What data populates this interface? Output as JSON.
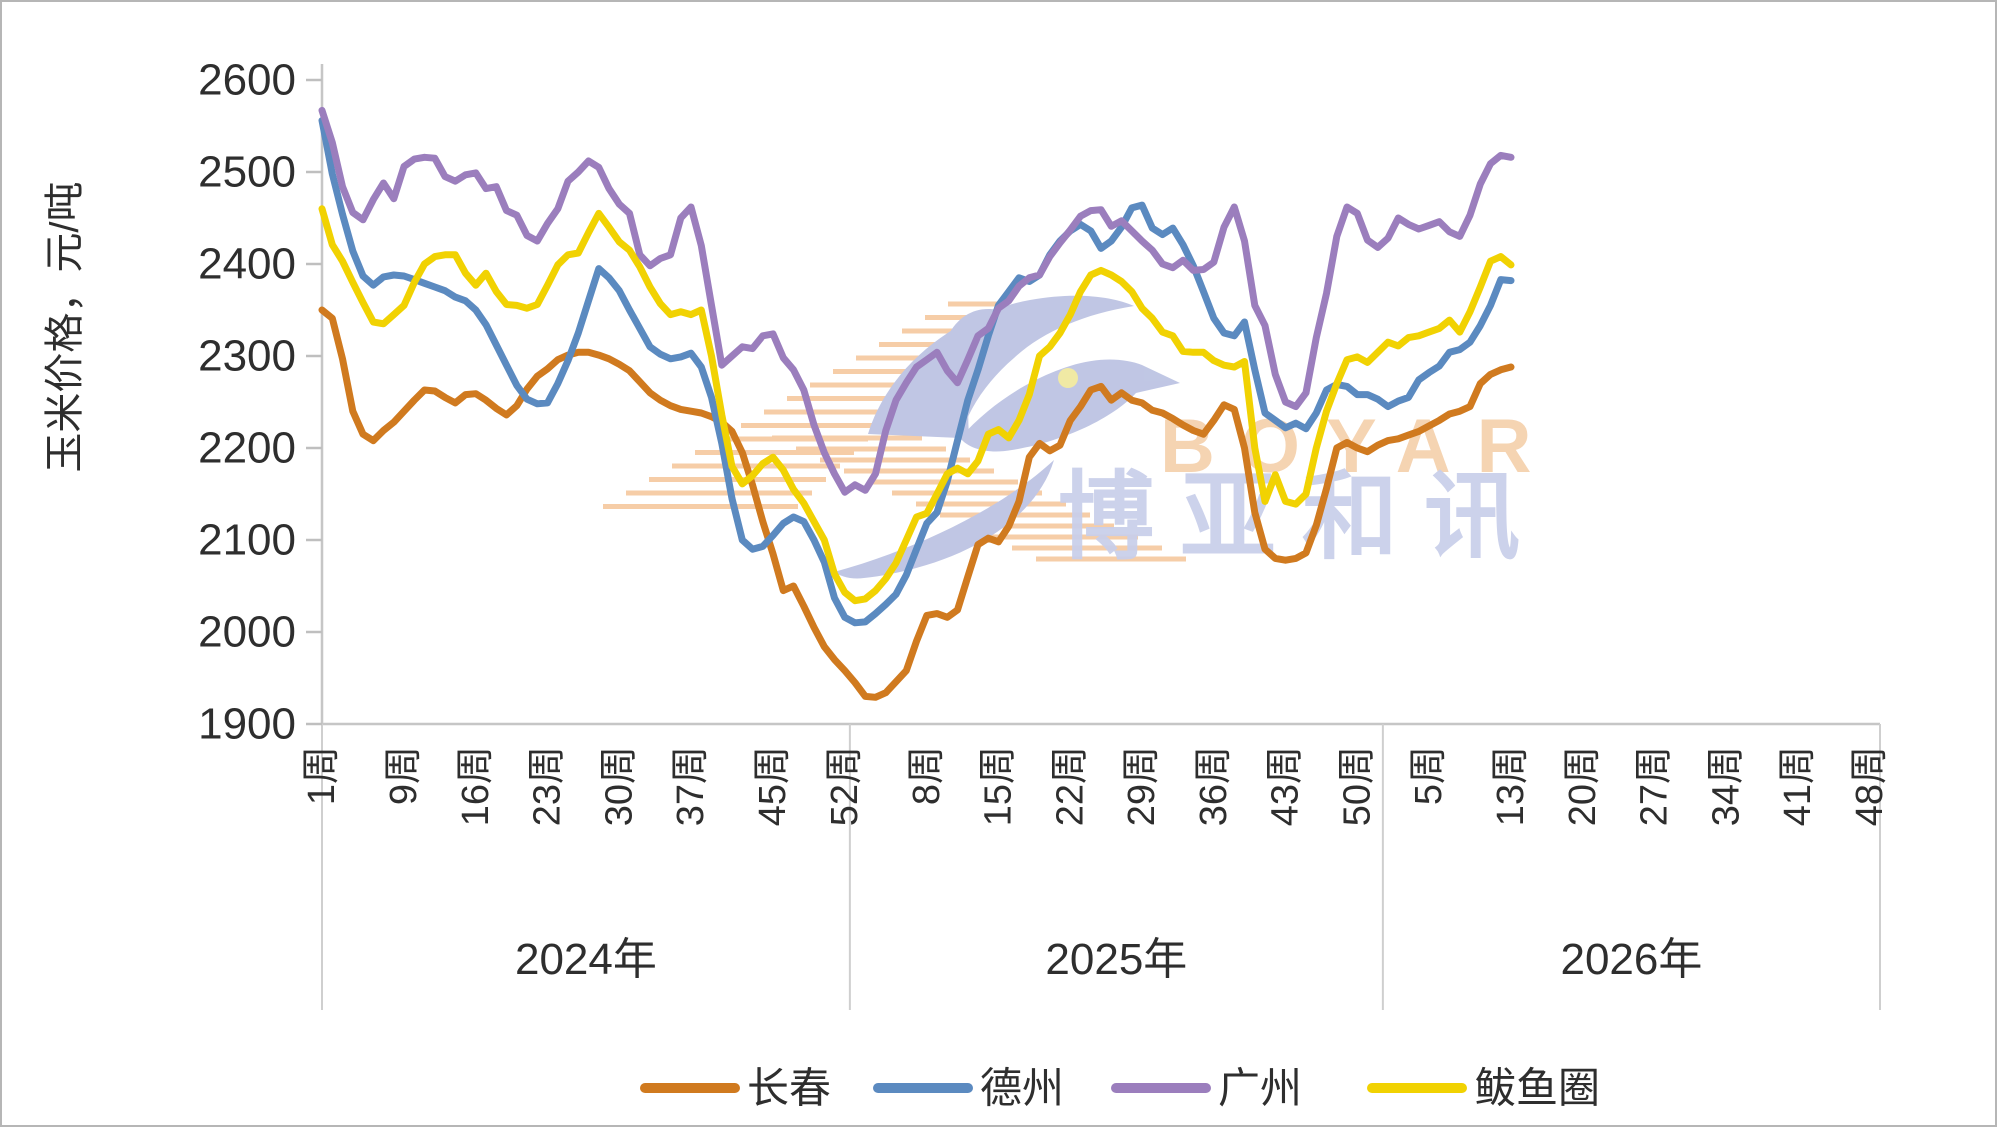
{
  "y_axis_title": "玉米价格，元/吨",
  "watermark": {
    "latin": "BOYAR",
    "cjk": "博亚和讯"
  },
  "chart_data": {
    "type": "line",
    "title": "",
    "ylabel": "玉米价格，元/吨",
    "ylim": [
      1900,
      2600
    ],
    "yticks": [
      2600,
      2500,
      2400,
      2300,
      2200,
      2100,
      2000,
      1900
    ],
    "grid": "off",
    "legend_position": "bottom",
    "week_suffix": "周",
    "years": [
      {
        "label": "2024年",
        "weeks": 52,
        "tick_weeks": [
          1,
          9,
          16,
          23,
          30,
          37,
          45,
          52
        ]
      },
      {
        "label": "2025年",
        "weeks": 52,
        "tick_weeks": [
          8,
          15,
          22,
          29,
          36,
          43,
          50
        ]
      },
      {
        "label": "2026年",
        "weeks": 52,
        "tick_weeks": [
          5,
          13,
          20,
          27,
          34,
          41,
          48
        ]
      }
    ],
    "series": [
      {
        "id": "changchun",
        "name": "长春",
        "color": "#D07A1F",
        "values": [
          2350,
          2341,
          2297,
          2240,
          2215,
          2208,
          2219,
          2228,
          2240,
          2252,
          2263,
          2262,
          2255,
          2249,
          2258,
          2259,
          2252,
          2243,
          2236,
          2246,
          2264,
          2278,
          2286,
          2296,
          2301,
          2304,
          2304,
          2301,
          2297,
          2291,
          2284,
          2272,
          2260,
          2252,
          2246,
          2242,
          2240,
          2238,
          2234,
          2228,
          2218,
          2195,
          2160,
          2120,
          2085,
          2045,
          2050,
          2028,
          2005,
          1984,
          1970,
          1958,
          1945,
          1930,
          1929,
          1934,
          1946,
          1958,
          1990,
          2018,
          2020,
          2016,
          2024,
          2060,
          2095,
          2102,
          2098,
          2115,
          2142,
          2190,
          2205,
          2197,
          2203,
          2230,
          2245,
          2263,
          2267,
          2252,
          2260,
          2252,
          2249,
          2241,
          2238,
          2232,
          2225,
          2219,
          2215,
          2230,
          2247,
          2242,
          2200,
          2130,
          2090,
          2080,
          2078,
          2080,
          2086,
          2116,
          2156,
          2200,
          2206,
          2200,
          2196,
          2203,
          2208,
          2210,
          2214,
          2218,
          2224,
          2230,
          2237,
          2240,
          2245,
          2270,
          2280,
          2285,
          2288
        ]
      },
      {
        "id": "dezhou",
        "name": "德州",
        "color": "#5B8AC0",
        "values": [
          2556,
          2498,
          2454,
          2414,
          2387,
          2377,
          2386,
          2388,
          2387,
          2383,
          2379,
          2375,
          2371,
          2364,
          2360,
          2350,
          2334,
          2312,
          2290,
          2268,
          2253,
          2248,
          2249,
          2270,
          2295,
          2325,
          2360,
          2395,
          2385,
          2371,
          2350,
          2330,
          2310,
          2302,
          2297,
          2299,
          2303,
          2288,
          2255,
          2205,
          2145,
          2100,
          2090,
          2093,
          2105,
          2118,
          2125,
          2120,
          2100,
          2076,
          2037,
          2016,
          2010,
          2011,
          2020,
          2030,
          2041,
          2062,
          2090,
          2118,
          2130,
          2164,
          2208,
          2252,
          2285,
          2322,
          2355,
          2370,
          2385,
          2381,
          2388,
          2410,
          2425,
          2436,
          2443,
          2436,
          2417,
          2425,
          2440,
          2461,
          2464,
          2439,
          2432,
          2439,
          2421,
          2398,
          2370,
          2341,
          2325,
          2322,
          2337,
          2285,
          2238,
          2230,
          2222,
          2227,
          2221,
          2238,
          2263,
          2269,
          2267,
          2258,
          2258,
          2253,
          2245,
          2251,
          2255,
          2274,
          2282,
          2289,
          2304,
          2307,
          2315,
          2333,
          2355,
          2383,
          2382
        ]
      },
      {
        "id": "guangzhou",
        "name": "广州",
        "color": "#9B7EBD",
        "values": [
          2567,
          2532,
          2484,
          2456,
          2448,
          2470,
          2488,
          2471,
          2506,
          2514,
          2516,
          2515,
          2495,
          2490,
          2497,
          2499,
          2482,
          2484,
          2458,
          2453,
          2431,
          2425,
          2444,
          2460,
          2490,
          2500,
          2512,
          2505,
          2482,
          2465,
          2455,
          2410,
          2398,
          2406,
          2410,
          2450,
          2462,
          2420,
          2355,
          2290,
          2300,
          2310,
          2308,
          2322,
          2324,
          2298,
          2285,
          2263,
          2225,
          2195,
          2172,
          2152,
          2160,
          2154,
          2172,
          2219,
          2252,
          2271,
          2288,
          2296,
          2304,
          2284,
          2271,
          2296,
          2322,
          2330,
          2352,
          2360,
          2376,
          2385,
          2388,
          2408,
          2423,
          2437,
          2452,
          2458,
          2459,
          2441,
          2447,
          2436,
          2425,
          2415,
          2400,
          2396,
          2404,
          2393,
          2394,
          2402,
          2440,
          2462,
          2425,
          2355,
          2333,
          2280,
          2250,
          2245,
          2260,
          2320,
          2368,
          2430,
          2462,
          2455,
          2426,
          2418,
          2428,
          2450,
          2443,
          2438,
          2442,
          2446,
          2435,
          2430,
          2453,
          2487,
          2509,
          2518,
          2516
        ]
      },
      {
        "id": "bayuquan",
        "name": "鲅鱼圈",
        "color": "#F1D202",
        "values": [
          2460,
          2421,
          2403,
          2380,
          2358,
          2337,
          2335,
          2345,
          2355,
          2380,
          2400,
          2408,
          2410,
          2410,
          2390,
          2377,
          2390,
          2370,
          2356,
          2355,
          2352,
          2356,
          2377,
          2399,
          2410,
          2412,
          2434,
          2455,
          2440,
          2424,
          2415,
          2397,
          2375,
          2357,
          2345,
          2348,
          2345,
          2350,
          2300,
          2236,
          2180,
          2161,
          2170,
          2183,
          2190,
          2176,
          2155,
          2140,
          2120,
          2100,
          2063,
          2043,
          2034,
          2036,
          2045,
          2058,
          2075,
          2100,
          2125,
          2129,
          2150,
          2172,
          2178,
          2172,
          2186,
          2215,
          2220,
          2211,
          2230,
          2258,
          2300,
          2310,
          2325,
          2345,
          2370,
          2388,
          2393,
          2388,
          2381,
          2370,
          2352,
          2341,
          2326,
          2322,
          2305,
          2304,
          2304,
          2295,
          2290,
          2288,
          2294,
          2200,
          2142,
          2171,
          2142,
          2139,
          2150,
          2200,
          2240,
          2270,
          2296,
          2299,
          2293,
          2304,
          2315,
          2311,
          2320,
          2322,
          2326,
          2330,
          2339,
          2326,
          2348,
          2375,
          2403,
          2408,
          2399
        ]
      }
    ]
  }
}
